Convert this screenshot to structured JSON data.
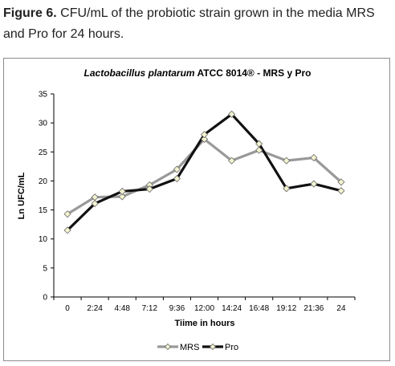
{
  "caption": {
    "label": "Figure 6.",
    "text": " CFU/mL of the probiotic strain grown in the media MRS and Pro for 24 hours."
  },
  "chart_data": {
    "type": "line",
    "title_italic": "Lactobacillus plantarum",
    "title_rest": " ATCC 8014® -  MRS y Pro",
    "xlabel": "Tiime in hours",
    "ylabel": "Ln UFC/mL",
    "ylim": [
      0,
      35
    ],
    "yticks": [
      0,
      5,
      10,
      15,
      20,
      25,
      30,
      35
    ],
    "categories": [
      "0",
      "2:24",
      "4:48",
      "7:12",
      "9:36",
      "12:00",
      "14:24",
      "16:48",
      "19:12",
      "21:36",
      "24"
    ],
    "series": [
      {
        "name": "MRS",
        "color": "#999999",
        "values": [
          14.3,
          17.2,
          17.3,
          19.3,
          22.0,
          27.2,
          23.5,
          25.3,
          23.5,
          24.0,
          19.8
        ]
      },
      {
        "name": "Pro",
        "color": "#111111",
        "values": [
          11.5,
          16.1,
          18.2,
          18.6,
          20.4,
          28.0,
          31.5,
          26.4,
          18.7,
          19.5,
          18.3
        ]
      }
    ],
    "marker_fill": "#f3f3cf",
    "grid": false,
    "legend_position": "bottom-center"
  }
}
